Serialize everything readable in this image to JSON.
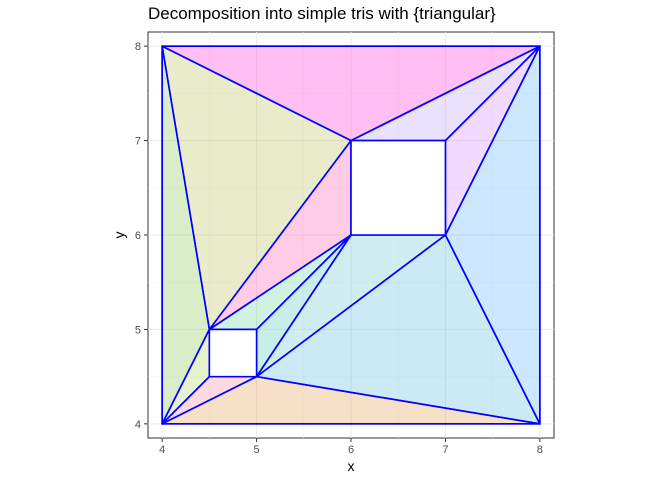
{
  "chart_data": {
    "type": "polygon",
    "title": "Decomposition into simple tris with {triangular}",
    "xlabel": "x",
    "ylabel": "y",
    "xlim": [
      3.85,
      8.15
    ],
    "ylim": [
      3.85,
      8.15
    ],
    "xticks": [
      4,
      5,
      6,
      7,
      8
    ],
    "yticks": [
      4,
      5,
      6,
      7,
      8
    ],
    "grid": true,
    "edge_color": "#0000FF",
    "outer_boundary": [
      [
        4,
        4
      ],
      [
        8,
        4
      ],
      [
        8,
        8
      ],
      [
        4,
        8
      ]
    ],
    "holes": [
      [
        [
          6,
          6
        ],
        [
          7,
          6
        ],
        [
          7,
          7
        ],
        [
          6,
          7
        ]
      ],
      [
        [
          4.5,
          4.5
        ],
        [
          5,
          4.5
        ],
        [
          5,
          5
        ],
        [
          4.5,
          5
        ]
      ]
    ],
    "triangles": [
      {
        "points": [
          [
            4,
            8
          ],
          [
            8,
            8
          ],
          [
            6,
            7
          ]
        ],
        "fill": "#FF00CC"
      },
      {
        "points": [
          [
            6,
            7
          ],
          [
            8,
            8
          ],
          [
            7,
            7
          ]
        ],
        "fill": "#AA88FF"
      },
      {
        "points": [
          [
            7,
            7
          ],
          [
            8,
            8
          ],
          [
            7,
            6
          ]
        ],
        "fill": "#CC66FF"
      },
      {
        "points": [
          [
            7,
            6
          ],
          [
            8,
            8
          ],
          [
            8,
            4
          ]
        ],
        "fill": "#33A0FF"
      },
      {
        "points": [
          [
            4,
            8
          ],
          [
            6,
            7
          ],
          [
            4.5,
            5
          ]
        ],
        "fill": "#AAB030"
      },
      {
        "points": [
          [
            4,
            8
          ],
          [
            4.5,
            5
          ],
          [
            4,
            4
          ]
        ],
        "fill": "#66BB22"
      },
      {
        "points": [
          [
            6,
            7
          ],
          [
            6,
            6
          ],
          [
            4.5,
            5
          ]
        ],
        "fill": "#FF3399"
      },
      {
        "points": [
          [
            6,
            6
          ],
          [
            7,
            6
          ],
          [
            5,
            4.5
          ]
        ],
        "fill": "#44B8C8"
      },
      {
        "points": [
          [
            7,
            6
          ],
          [
            8,
            4
          ],
          [
            5,
            4.5
          ]
        ],
        "fill": "#33AADD"
      },
      {
        "points": [
          [
            6,
            6
          ],
          [
            5,
            4.5
          ],
          [
            5,
            5
          ]
        ],
        "fill": "#22BBAA"
      },
      {
        "points": [
          [
            6,
            6
          ],
          [
            5,
            5
          ],
          [
            4.5,
            5
          ]
        ],
        "fill": "#44CC88"
      },
      {
        "points": [
          [
            4,
            4
          ],
          [
            4.5,
            5
          ],
          [
            4.5,
            4.5
          ]
        ],
        "fill": "#99CC33"
      },
      {
        "points": [
          [
            4,
            4
          ],
          [
            4.5,
            4.5
          ],
          [
            5,
            4.5
          ]
        ],
        "fill": "#FF6688"
      },
      {
        "points": [
          [
            4,
            4
          ],
          [
            5,
            4.5
          ],
          [
            8,
            4
          ]
        ],
        "fill": "#DD8822"
      }
    ]
  }
}
